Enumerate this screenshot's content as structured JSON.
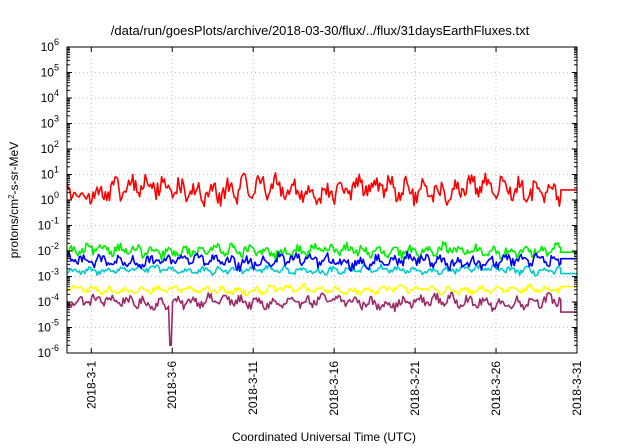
{
  "chart_data": {
    "type": "line",
    "title": "/data/run/goesPlots/archive/2018-03-30/flux/../flux/31daysEarthFluxes.txt",
    "xlabel": "Coordinated Universal Time (UTC)",
    "ylabel_base": "protons/cm",
    "ylabel_sup": "2",
    "ylabel_rest": "-s-sr-MeV",
    "yscale": "log",
    "ylim_exp": [
      -6,
      6
    ],
    "y_tick_base": "10",
    "y_tick_exps": [
      "-6",
      "-5",
      "-4",
      "-3",
      "-2",
      "-1",
      "0",
      "1",
      "2",
      "3",
      "4",
      "5",
      "6"
    ],
    "xlim_day": [
      -0.5,
      31
    ],
    "x_ticks": [
      {
        "label": "2018-3-1",
        "day": 1
      },
      {
        "label": "2018-3-6",
        "day": 6
      },
      {
        "label": "2018-3-11",
        "day": 11
      },
      {
        "label": "2018-3-16",
        "day": 16
      },
      {
        "label": "2018-3-21",
        "day": 21
      },
      {
        "label": "2018-3-26",
        "day": 26
      },
      {
        "label": "2018-3-31",
        "day": 31
      }
    ],
    "grid": true,
    "series": [
      {
        "color": "#9b2a6b",
        "center": 0.0001,
        "spread": 0.55,
        "end_day": 30.0,
        "tail": 4e-05,
        "spike": {
          "day": 5.9,
          "value": 2e-06
        }
      },
      {
        "color": "#ffff00",
        "center": 0.0003,
        "spread": 0.35,
        "end_day": 30.0,
        "tail": 0.0004
      },
      {
        "color": "#00cccc",
        "center": 0.0018,
        "spread": 0.35,
        "end_day": 30.0,
        "tail": 0.0013
      },
      {
        "color": "#00ee00",
        "center": 0.01,
        "spread": 0.55,
        "end_day": 30.0,
        "tail": 0.009
      },
      {
        "color": "#0000ff",
        "center": 0.004,
        "spread": 0.6,
        "end_day": 30.0,
        "tail": 0.005
      },
      {
        "color": "#ff0000",
        "center": 2.5,
        "spread": 1.1,
        "end_day": 30.0,
        "tail": 2.5
      }
    ]
  }
}
